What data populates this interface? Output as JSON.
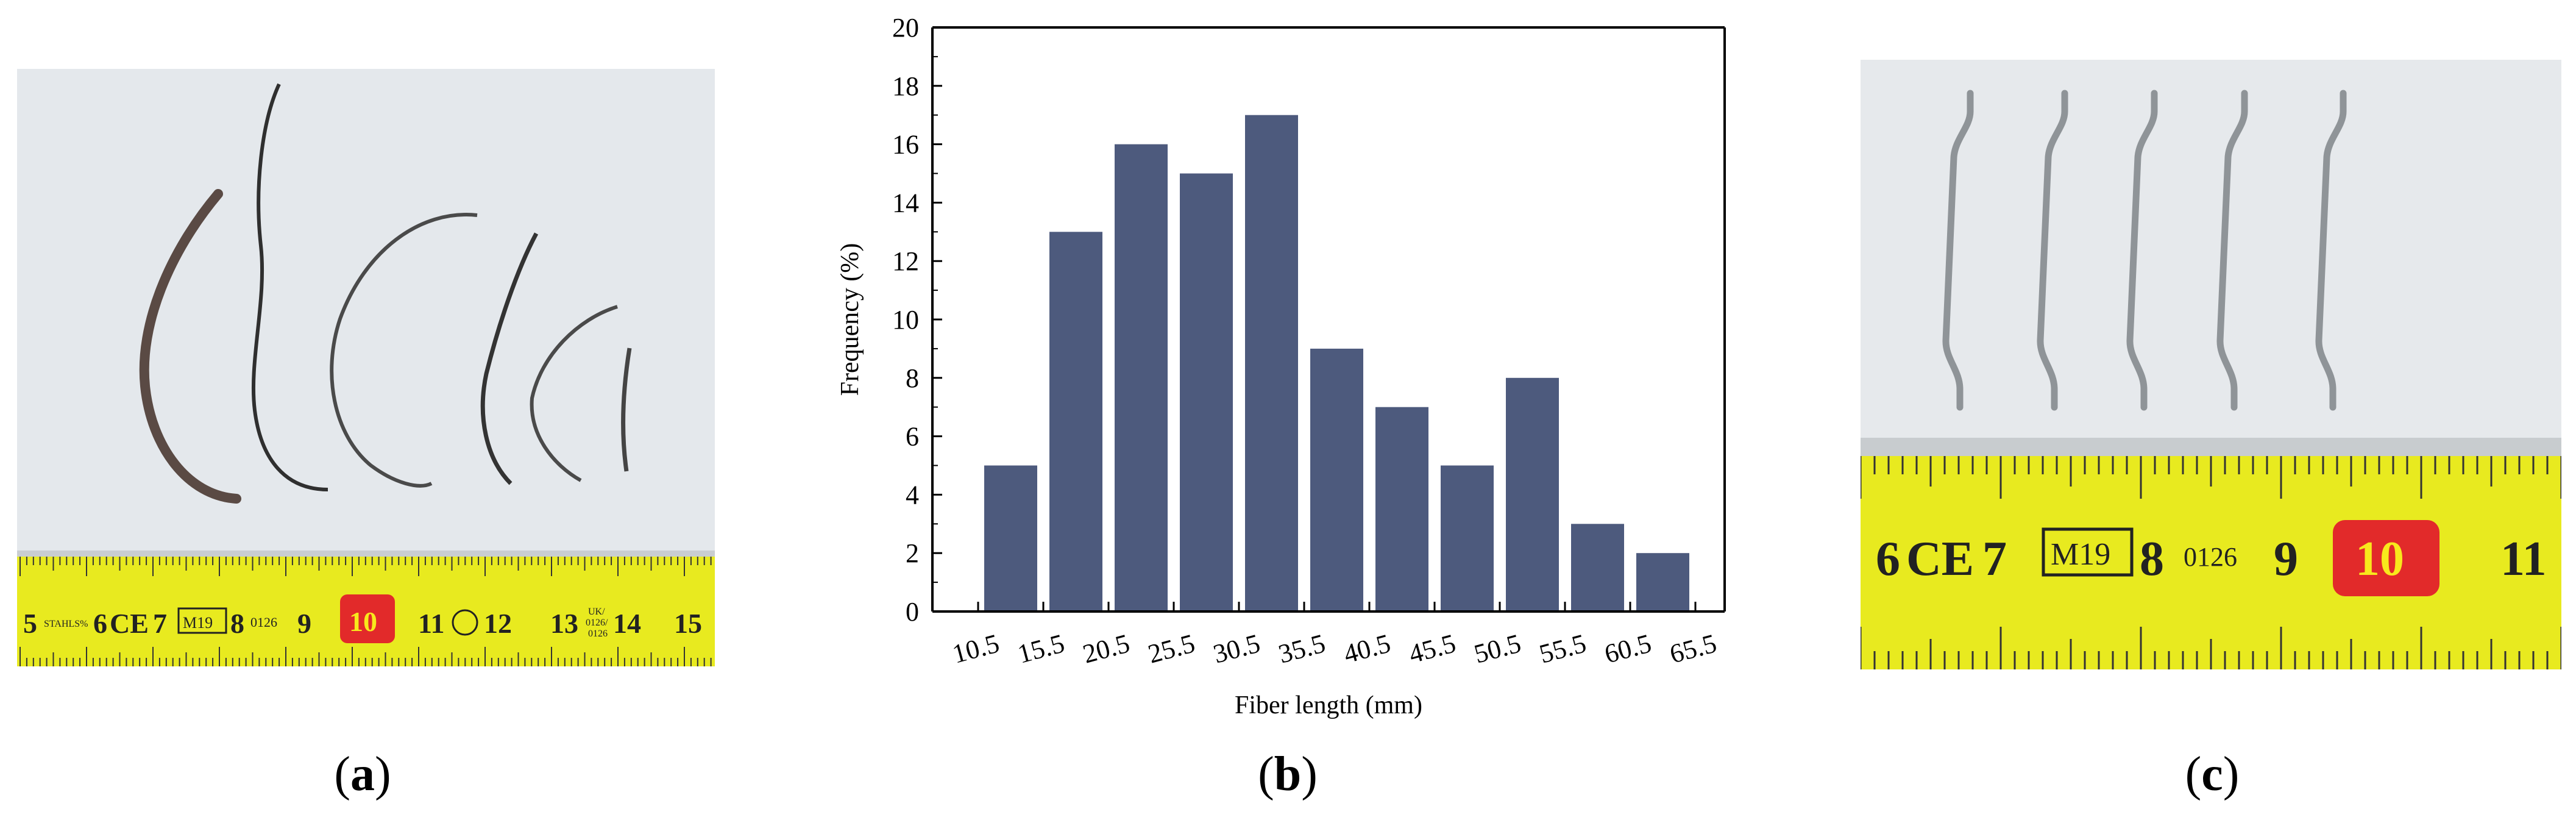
{
  "panels": [
    {
      "id": "a",
      "label": "a"
    },
    {
      "id": "b",
      "label": "b"
    },
    {
      "id": "c",
      "label": "c"
    }
  ],
  "photo_a": {
    "tape_numbers": [
      "5",
      "6",
      "7",
      "8",
      "9",
      "10",
      "11",
      "12",
      "13",
      "14",
      "15"
    ],
    "tape_marks": {
      "brand": "STAHLS%",
      "ce": "CE",
      "m19": "M19",
      "code": "0126",
      "uk": "UK/",
      "uk_code": "0126/",
      "uk_code2": "0126"
    }
  },
  "photo_c": {
    "tape_numbers": [
      "6",
      "7",
      "8",
      "9",
      "10",
      "11"
    ],
    "tape_marks": {
      "ce": "CE",
      "m19": "M19",
      "code": "0126"
    }
  },
  "colors": {
    "bar": "#4d5a7d",
    "tape": "#e8ea1f",
    "red_box": "#e22a2a"
  },
  "chart_data": {
    "type": "bar",
    "xlabel": "Fiber length (mm)",
    "ylabel": "Frequency (%)",
    "x_ticks": [
      "10.5",
      "15.5",
      "20.5",
      "25.5",
      "30.5",
      "35.5",
      "40.5",
      "45.5",
      "50.5",
      "55.5",
      "60.5",
      "65.5"
    ],
    "bin_edges": [
      10.5,
      15.5,
      20.5,
      25.5,
      30.5,
      35.5,
      40.5,
      45.5,
      50.5,
      55.5,
      60.5,
      65.5
    ],
    "values": [
      5,
      13,
      16,
      15,
      17,
      9,
      7,
      5,
      8,
      3,
      2
    ],
    "y_ticks": [
      "0",
      "2",
      "4",
      "6",
      "8",
      "10",
      "12",
      "14",
      "16",
      "18",
      "20"
    ],
    "ylim": [
      0,
      20
    ],
    "grid": false
  }
}
